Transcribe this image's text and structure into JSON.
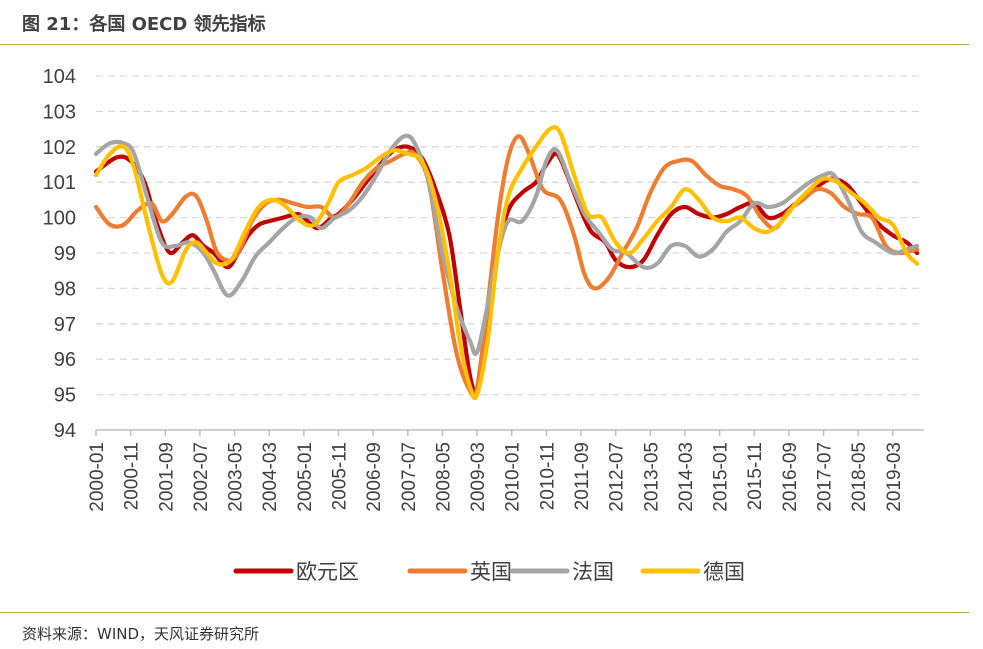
{
  "header": {
    "title": "图 21：各国 OECD 领先指标"
  },
  "footer": {
    "source": "资料来源：WIND，天风证券研究所"
  },
  "chart_data": {
    "type": "line",
    "title": "",
    "xlabel": "",
    "ylabel": "",
    "ylim": [
      94,
      104
    ],
    "yticks": [
      "94",
      "95",
      "96",
      "97",
      "98",
      "99",
      "100",
      "101",
      "102",
      "103",
      "104"
    ],
    "grid": true,
    "legend_position": "bottom",
    "x_range": [
      "2000-01",
      "2019-12"
    ],
    "x_tick_labels": [
      "2000-01",
      "2000-11",
      "2001-09",
      "2002-07",
      "2003-05",
      "2004-03",
      "2005-01",
      "2005-11",
      "2006-09",
      "2007-07",
      "2008-05",
      "2009-03",
      "2010-01",
      "2010-11",
      "2011-09",
      "2012-07",
      "2013-05",
      "2014-03",
      "2015-01",
      "2015-11",
      "2016-09",
      "2017-07",
      "2018-05",
      "2019-03"
    ],
    "series": [
      {
        "name": "欧元区",
        "color": "#c00000",
        "points": [
          [
            "2000-01",
            101.3
          ],
          [
            "2000-07",
            101.7
          ],
          [
            "2000-11",
            101.6
          ],
          [
            "2001-03",
            101.0
          ],
          [
            "2001-06",
            100.0
          ],
          [
            "2001-09",
            99.2
          ],
          [
            "2001-11",
            99.0
          ],
          [
            "2002-02",
            99.3
          ],
          [
            "2002-05",
            99.5
          ],
          [
            "2002-08",
            99.2
          ],
          [
            "2002-11",
            99.0
          ],
          [
            "2003-03",
            98.6
          ],
          [
            "2003-06",
            99.0
          ],
          [
            "2003-09",
            99.5
          ],
          [
            "2003-12",
            99.8
          ],
          [
            "2004-03",
            99.9
          ],
          [
            "2004-07",
            100.0
          ],
          [
            "2004-11",
            100.1
          ],
          [
            "2005-01",
            100.0
          ],
          [
            "2005-05",
            99.7
          ],
          [
            "2005-09",
            100.0
          ],
          [
            "2005-11",
            100.1
          ],
          [
            "2006-03",
            100.5
          ],
          [
            "2006-07",
            101.0
          ],
          [
            "2006-11",
            101.5
          ],
          [
            "2007-03",
            101.9
          ],
          [
            "2007-07",
            102.0
          ],
          [
            "2007-11",
            101.7
          ],
          [
            "2008-03",
            100.8
          ],
          [
            "2008-07",
            99.5
          ],
          [
            "2008-10",
            97.5
          ],
          [
            "2009-01",
            95.5
          ],
          [
            "2009-03",
            95.2
          ],
          [
            "2009-06",
            96.8
          ],
          [
            "2009-09",
            99.0
          ],
          [
            "2009-12",
            100.2
          ],
          [
            "2010-04",
            100.7
          ],
          [
            "2010-08",
            101.0
          ],
          [
            "2010-11",
            101.5
          ],
          [
            "2011-02",
            101.8
          ],
          [
            "2011-05",
            101.2
          ],
          [
            "2011-09",
            100.2
          ],
          [
            "2011-12",
            99.6
          ],
          [
            "2012-04",
            99.3
          ],
          [
            "2012-07",
            98.8
          ],
          [
            "2012-11",
            98.6
          ],
          [
            "2013-03",
            98.8
          ],
          [
            "2013-07",
            99.5
          ],
          [
            "2013-11",
            100.1
          ],
          [
            "2014-03",
            100.3
          ],
          [
            "2014-07",
            100.1
          ],
          [
            "2014-11",
            100.0
          ],
          [
            "2015-03",
            100.1
          ],
          [
            "2015-07",
            100.3
          ],
          [
            "2015-11",
            100.4
          ],
          [
            "2016-03",
            100.0
          ],
          [
            "2016-07",
            100.1
          ],
          [
            "2016-11",
            100.4
          ],
          [
            "2017-03",
            100.7
          ],
          [
            "2017-07",
            101.0
          ],
          [
            "2017-10",
            101.1
          ],
          [
            "2018-02",
            100.9
          ],
          [
            "2018-06",
            100.4
          ],
          [
            "2018-10",
            99.9
          ],
          [
            "2019-03",
            99.5
          ],
          [
            "2019-07",
            99.3
          ],
          [
            "2019-10",
            99.0
          ]
        ]
      },
      {
        "name": "英国",
        "color": "#ed7d31",
        "points": [
          [
            "2000-01",
            100.3
          ],
          [
            "2000-05",
            99.8
          ],
          [
            "2000-09",
            99.8
          ],
          [
            "2001-01",
            100.2
          ],
          [
            "2001-05",
            100.4
          ],
          [
            "2001-08",
            99.9
          ],
          [
            "2001-11",
            100.1
          ],
          [
            "2002-03",
            100.6
          ],
          [
            "2002-06",
            100.6
          ],
          [
            "2002-09",
            99.9
          ],
          [
            "2002-12",
            99.0
          ],
          [
            "2003-04",
            98.8
          ],
          [
            "2003-07",
            99.2
          ],
          [
            "2003-10",
            99.9
          ],
          [
            "2004-02",
            100.4
          ],
          [
            "2004-06",
            100.5
          ],
          [
            "2004-10",
            100.4
          ],
          [
            "2005-02",
            100.3
          ],
          [
            "2005-06",
            100.3
          ],
          [
            "2005-10",
            100.0
          ],
          [
            "2006-02",
            100.4
          ],
          [
            "2006-06",
            101.0
          ],
          [
            "2006-10",
            101.4
          ],
          [
            "2007-02",
            101.6
          ],
          [
            "2007-06",
            101.8
          ],
          [
            "2007-09",
            101.8
          ],
          [
            "2008-01",
            101.0
          ],
          [
            "2008-05",
            98.5
          ],
          [
            "2008-09",
            96.2
          ],
          [
            "2009-01",
            95.1
          ],
          [
            "2009-03",
            95.2
          ],
          [
            "2009-06",
            97.5
          ],
          [
            "2009-09",
            100.0
          ],
          [
            "2009-12",
            101.7
          ],
          [
            "2010-03",
            102.3
          ],
          [
            "2010-06",
            101.8
          ],
          [
            "2010-10",
            100.8
          ],
          [
            "2011-03",
            100.5
          ],
          [
            "2011-07",
            99.5
          ],
          [
            "2011-10",
            98.4
          ],
          [
            "2012-01",
            98.0
          ],
          [
            "2012-05",
            98.3
          ],
          [
            "2012-09",
            99.0
          ],
          [
            "2013-01",
            99.7
          ],
          [
            "2013-05",
            100.7
          ],
          [
            "2013-09",
            101.4
          ],
          [
            "2014-01",
            101.6
          ],
          [
            "2014-05",
            101.6
          ],
          [
            "2014-09",
            101.2
          ],
          [
            "2015-01",
            100.9
          ],
          [
            "2015-05",
            100.8
          ],
          [
            "2015-09",
            100.6
          ],
          [
            "2016-01",
            100.0
          ],
          [
            "2016-05",
            99.7
          ],
          [
            "2016-09",
            100.2
          ],
          [
            "2017-01",
            100.5
          ],
          [
            "2017-05",
            100.8
          ],
          [
            "2017-09",
            100.7
          ],
          [
            "2018-01",
            100.3
          ],
          [
            "2018-05",
            100.1
          ],
          [
            "2018-09",
            100.0
          ],
          [
            "2019-01",
            99.2
          ],
          [
            "2019-05",
            99.0
          ],
          [
            "2019-10",
            99.1
          ]
        ]
      },
      {
        "name": "法国",
        "color": "#a5a5a5",
        "points": [
          [
            "2000-01",
            101.8
          ],
          [
            "2000-05",
            102.1
          ],
          [
            "2000-09",
            102.1
          ],
          [
            "2000-12",
            101.8
          ],
          [
            "2001-04",
            100.5
          ],
          [
            "2001-08",
            99.3
          ],
          [
            "2001-12",
            99.2
          ],
          [
            "2002-04",
            99.3
          ],
          [
            "2002-08",
            99.0
          ],
          [
            "2002-11",
            98.5
          ],
          [
            "2003-03",
            97.8
          ],
          [
            "2003-07",
            98.2
          ],
          [
            "2003-11",
            98.9
          ],
          [
            "2004-03",
            99.3
          ],
          [
            "2004-07",
            99.7
          ],
          [
            "2004-11",
            100.0
          ],
          [
            "2005-03",
            100.0
          ],
          [
            "2005-06",
            99.7
          ],
          [
            "2005-10",
            100.0
          ],
          [
            "2006-02",
            100.2
          ],
          [
            "2006-06",
            100.6
          ],
          [
            "2006-10",
            101.2
          ],
          [
            "2007-02",
            101.9
          ],
          [
            "2007-06",
            102.3
          ],
          [
            "2007-09",
            102.1
          ],
          [
            "2008-01",
            101.0
          ],
          [
            "2008-05",
            99.0
          ],
          [
            "2008-09",
            97.5
          ],
          [
            "2009-01",
            96.5
          ],
          [
            "2009-03",
            96.2
          ],
          [
            "2009-06",
            97.5
          ],
          [
            "2009-09",
            99.0
          ],
          [
            "2009-12",
            99.9
          ],
          [
            "2010-04",
            99.9
          ],
          [
            "2010-08",
            100.6
          ],
          [
            "2010-11",
            101.6
          ],
          [
            "2011-02",
            101.9
          ],
          [
            "2011-06",
            101.0
          ],
          [
            "2011-10",
            100.1
          ],
          [
            "2012-02",
            99.6
          ],
          [
            "2012-06",
            99.1
          ],
          [
            "2012-10",
            99.0
          ],
          [
            "2013-03",
            98.6
          ],
          [
            "2013-07",
            98.7
          ],
          [
            "2013-11",
            99.2
          ],
          [
            "2014-03",
            99.2
          ],
          [
            "2014-07",
            98.9
          ],
          [
            "2014-11",
            99.1
          ],
          [
            "2015-03",
            99.6
          ],
          [
            "2015-07",
            99.9
          ],
          [
            "2015-11",
            100.4
          ],
          [
            "2016-03",
            100.3
          ],
          [
            "2016-07",
            100.4
          ],
          [
            "2016-11",
            100.7
          ],
          [
            "2017-03",
            101.0
          ],
          [
            "2017-07",
            101.2
          ],
          [
            "2017-10",
            101.2
          ],
          [
            "2018-02",
            100.5
          ],
          [
            "2018-06",
            99.6
          ],
          [
            "2018-10",
            99.3
          ],
          [
            "2019-03",
            99.0
          ],
          [
            "2019-07",
            99.1
          ],
          [
            "2019-10",
            99.2
          ]
        ]
      },
      {
        "name": "德国",
        "color": "#ffc000",
        "points": [
          [
            "2000-01",
            101.2
          ],
          [
            "2000-05",
            101.8
          ],
          [
            "2000-09",
            102.0
          ],
          [
            "2000-12",
            101.4
          ],
          [
            "2001-04",
            99.8
          ],
          [
            "2001-08",
            98.4
          ],
          [
            "2001-11",
            98.2
          ],
          [
            "2002-03",
            99.1
          ],
          [
            "2002-06",
            99.3
          ],
          [
            "2002-09",
            99.0
          ],
          [
            "2002-12",
            98.7
          ],
          [
            "2003-04",
            98.8
          ],
          [
            "2003-08",
            99.6
          ],
          [
            "2003-12",
            100.3
          ],
          [
            "2004-04",
            100.5
          ],
          [
            "2004-08",
            100.3
          ],
          [
            "2004-12",
            99.9
          ],
          [
            "2005-04",
            99.8
          ],
          [
            "2005-08",
            100.4
          ],
          [
            "2005-11",
            101.0
          ],
          [
            "2006-03",
            101.2
          ],
          [
            "2006-07",
            101.4
          ],
          [
            "2006-11",
            101.7
          ],
          [
            "2007-03",
            101.9
          ],
          [
            "2007-07",
            101.8
          ],
          [
            "2007-11",
            101.6
          ],
          [
            "2008-03",
            100.5
          ],
          [
            "2008-07",
            98.5
          ],
          [
            "2008-10",
            96.5
          ],
          [
            "2009-01",
            95.2
          ],
          [
            "2009-03",
            95.0
          ],
          [
            "2009-06",
            96.5
          ],
          [
            "2009-09",
            99.0
          ],
          [
            "2009-12",
            100.6
          ],
          [
            "2010-04",
            101.4
          ],
          [
            "2010-08",
            102.0
          ],
          [
            "2010-12",
            102.5
          ],
          [
            "2011-03",
            102.4
          ],
          [
            "2011-07",
            101.2
          ],
          [
            "2011-11",
            100.1
          ],
          [
            "2012-03",
            100.0
          ],
          [
            "2012-07",
            99.3
          ],
          [
            "2012-11",
            99.0
          ],
          [
            "2013-03",
            99.4
          ],
          [
            "2013-07",
            99.9
          ],
          [
            "2013-11",
            100.3
          ],
          [
            "2014-03",
            100.8
          ],
          [
            "2014-07",
            100.5
          ],
          [
            "2014-11",
            100.0
          ],
          [
            "2015-03",
            99.9
          ],
          [
            "2015-07",
            100.0
          ],
          [
            "2015-11",
            99.7
          ],
          [
            "2016-03",
            99.6
          ],
          [
            "2016-07",
            99.9
          ],
          [
            "2016-11",
            100.4
          ],
          [
            "2017-03",
            100.8
          ],
          [
            "2017-07",
            101.1
          ],
          [
            "2017-11",
            101.0
          ],
          [
            "2018-03",
            100.7
          ],
          [
            "2018-07",
            100.4
          ],
          [
            "2018-11",
            100.0
          ],
          [
            "2019-03",
            99.8
          ],
          [
            "2019-07",
            99.0
          ],
          [
            "2019-10",
            98.7
          ]
        ]
      }
    ]
  }
}
